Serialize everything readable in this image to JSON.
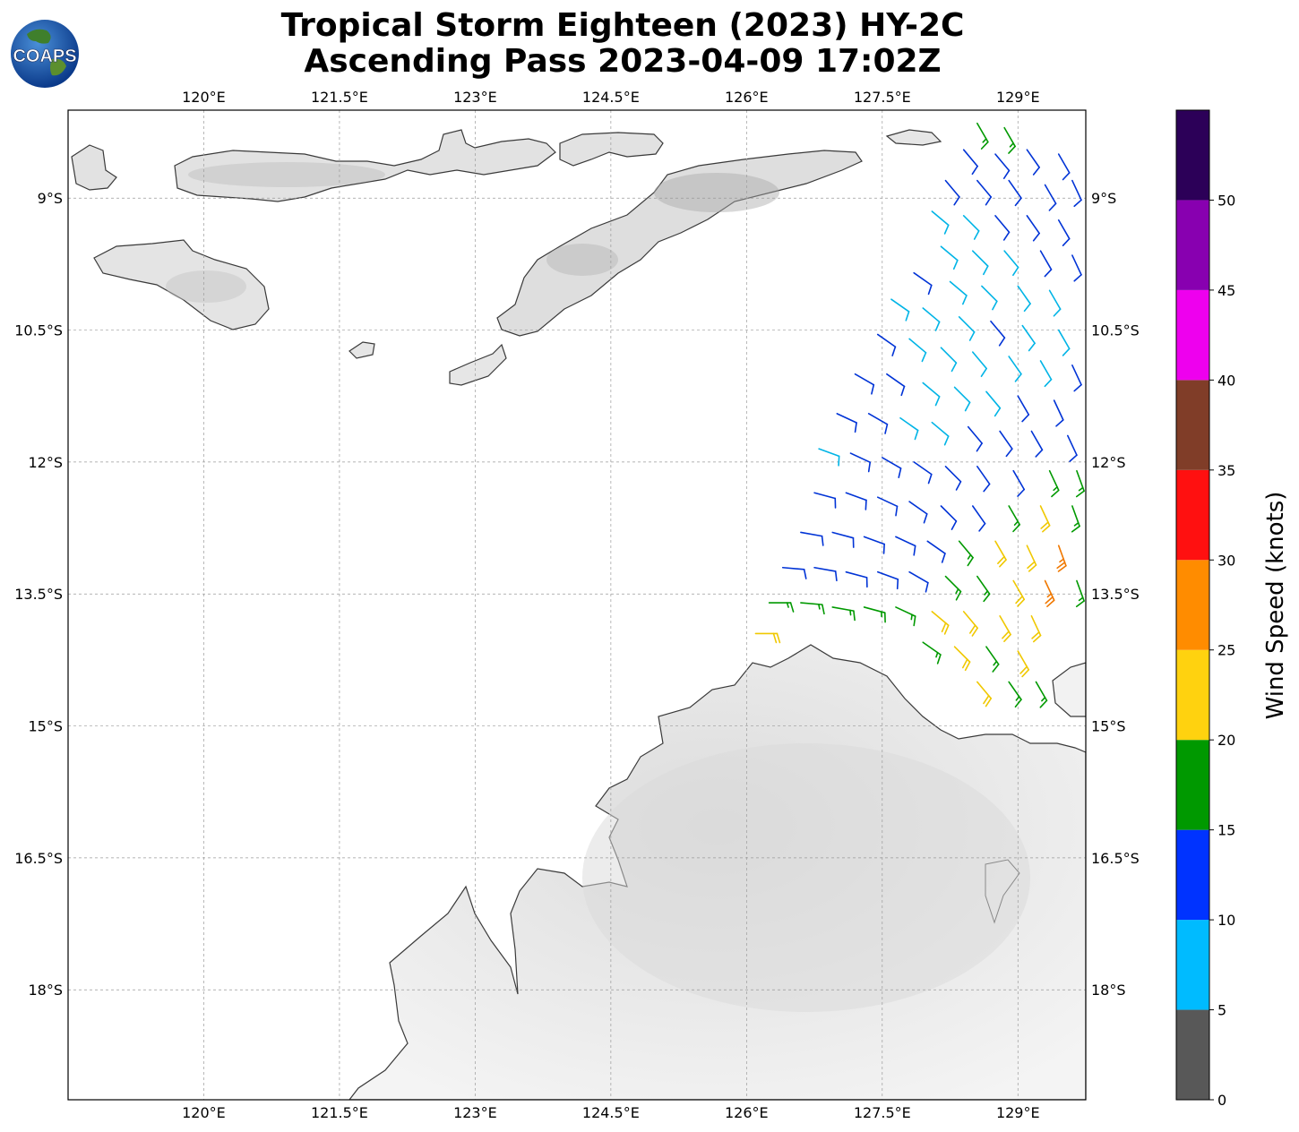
{
  "title": {
    "line1": "Tropical Storm Eighteen (2023) HY-2C",
    "line2": "Ascending Pass 2023-04-09 17:02Z"
  },
  "logo": {
    "text": "COAPS",
    "icon": "globe-logo-icon"
  },
  "map": {
    "lon_range": [
      118.5,
      129.75
    ],
    "lat_range": [
      -19.25,
      -8.0
    ],
    "lon_ticks": [
      {
        "value": 120.0,
        "label": "120°E"
      },
      {
        "value": 121.5,
        "label": "121.5°E"
      },
      {
        "value": 123.0,
        "label": "123°E"
      },
      {
        "value": 124.5,
        "label": "124.5°E"
      },
      {
        "value": 126.0,
        "label": "126°E"
      },
      {
        "value": 127.5,
        "label": "127.5°E"
      },
      {
        "value": 129.0,
        "label": "129°E"
      }
    ],
    "lat_ticks": [
      {
        "value": -9.0,
        "label": "9°S"
      },
      {
        "value": -10.5,
        "label": "10.5°S"
      },
      {
        "value": -12.0,
        "label": "12°S"
      },
      {
        "value": -13.5,
        "label": "13.5°S"
      },
      {
        "value": -15.0,
        "label": "15°S"
      },
      {
        "value": -16.5,
        "label": "16.5°S"
      },
      {
        "value": -18.0,
        "label": "18°S"
      }
    ],
    "grid": true,
    "regions": [
      "Flores",
      "Sumba",
      "Timor",
      "Wetar",
      "Sawu",
      "Rote",
      "Western Australia (Kimberley)",
      "Northern Territory"
    ]
  },
  "colorbar": {
    "label": "Wind Speed (knots)",
    "range": [
      0,
      55
    ],
    "ticks": [
      0,
      5,
      10,
      15,
      20,
      25,
      30,
      35,
      40,
      45,
      50
    ],
    "colors": [
      {
        "from": 0,
        "to": 5,
        "color": "#585858"
      },
      {
        "from": 5,
        "to": 10,
        "color": "#00bbff"
      },
      {
        "from": 10,
        "to": 15,
        "color": "#0033ff"
      },
      {
        "from": 15,
        "to": 20,
        "color": "#009900"
      },
      {
        "from": 20,
        "to": 25,
        "color": "#ffd20f"
      },
      {
        "from": 25,
        "to": 30,
        "color": "#ff8c00"
      },
      {
        "from": 30,
        "to": 35,
        "color": "#ff1010"
      },
      {
        "from": 35,
        "to": 40,
        "color": "#803d28"
      },
      {
        "from": 40,
        "to": 45,
        "color": "#ee00ee"
      },
      {
        "from": 45,
        "to": 50,
        "color": "#8800b0"
      },
      {
        "from": 50,
        "to": 55,
        "color": "#2c0058"
      }
    ]
  },
  "wind_field": {
    "colors": {
      "cyan": "#00b4e6",
      "blue": "#0033d6",
      "green": "#009900",
      "yellow": "#f0c800",
      "orange": "#f07800"
    },
    "samples_note_free": true,
    "barbs": [
      {
        "lon": 128.55,
        "lat": -8.15,
        "speed": 17,
        "dir": 150
      },
      {
        "lon": 128.85,
        "lat": -8.2,
        "speed": 17,
        "dir": 150
      },
      {
        "lon": 128.4,
        "lat": -8.45,
        "speed": 12,
        "dir": 140
      },
      {
        "lon": 128.75,
        "lat": -8.5,
        "speed": 12,
        "dir": 140
      },
      {
        "lon": 129.1,
        "lat": -8.45,
        "speed": 12,
        "dir": 145
      },
      {
        "lon": 129.45,
        "lat": -8.5,
        "speed": 12,
        "dir": 150
      },
      {
        "lon": 128.2,
        "lat": -8.8,
        "speed": 12,
        "dir": 140
      },
      {
        "lon": 128.55,
        "lat": -8.8,
        "speed": 12,
        "dir": 140
      },
      {
        "lon": 128.9,
        "lat": -8.8,
        "speed": 12,
        "dir": 145
      },
      {
        "lon": 129.3,
        "lat": -8.85,
        "speed": 12,
        "dir": 150
      },
      {
        "lon": 129.6,
        "lat": -8.8,
        "speed": 12,
        "dir": 155
      },
      {
        "lon": 128.05,
        "lat": -9.15,
        "speed": 8,
        "dir": 130
      },
      {
        "lon": 128.4,
        "lat": -9.2,
        "speed": 8,
        "dir": 135
      },
      {
        "lon": 128.75,
        "lat": -9.2,
        "speed": 12,
        "dir": 140
      },
      {
        "lon": 129.1,
        "lat": -9.2,
        "speed": 12,
        "dir": 145
      },
      {
        "lon": 129.45,
        "lat": -9.25,
        "speed": 12,
        "dir": 150
      },
      {
        "lon": 128.15,
        "lat": -9.55,
        "speed": 8,
        "dir": 130
      },
      {
        "lon": 128.5,
        "lat": -9.6,
        "speed": 8,
        "dir": 135
      },
      {
        "lon": 128.85,
        "lat": -9.6,
        "speed": 8,
        "dir": 140
      },
      {
        "lon": 129.25,
        "lat": -9.6,
        "speed": 12,
        "dir": 150
      },
      {
        "lon": 129.6,
        "lat": -9.65,
        "speed": 12,
        "dir": 155
      },
      {
        "lon": 127.85,
        "lat": -9.85,
        "speed": 12,
        "dir": 125
      },
      {
        "lon": 128.25,
        "lat": -9.95,
        "speed": 8,
        "dir": 130
      },
      {
        "lon": 128.6,
        "lat": -10.0,
        "speed": 8,
        "dir": 135
      },
      {
        "lon": 129.0,
        "lat": -10.0,
        "speed": 8,
        "dir": 145
      },
      {
        "lon": 129.35,
        "lat": -10.05,
        "speed": 8,
        "dir": 150
      },
      {
        "lon": 127.6,
        "lat": -10.15,
        "speed": 8,
        "dir": 125
      },
      {
        "lon": 127.95,
        "lat": -10.25,
        "speed": 8,
        "dir": 130
      },
      {
        "lon": 128.35,
        "lat": -10.35,
        "speed": 8,
        "dir": 135
      },
      {
        "lon": 128.7,
        "lat": -10.4,
        "speed": 12,
        "dir": 140
      },
      {
        "lon": 129.05,
        "lat": -10.45,
        "speed": 8,
        "dir": 145
      },
      {
        "lon": 129.45,
        "lat": -10.5,
        "speed": 8,
        "dir": 150
      },
      {
        "lon": 127.45,
        "lat": -10.55,
        "speed": 12,
        "dir": 125
      },
      {
        "lon": 127.8,
        "lat": -10.6,
        "speed": 8,
        "dir": 130
      },
      {
        "lon": 128.15,
        "lat": -10.7,
        "speed": 8,
        "dir": 135
      },
      {
        "lon": 128.5,
        "lat": -10.75,
        "speed": 8,
        "dir": 140
      },
      {
        "lon": 128.9,
        "lat": -10.8,
        "speed": 8,
        "dir": 145
      },
      {
        "lon": 129.25,
        "lat": -10.85,
        "speed": 8,
        "dir": 150
      },
      {
        "lon": 129.6,
        "lat": -10.9,
        "speed": 12,
        "dir": 155
      },
      {
        "lon": 127.2,
        "lat": -11.0,
        "speed": 12,
        "dir": 120
      },
      {
        "lon": 127.55,
        "lat": -11.0,
        "speed": 12,
        "dir": 125
      },
      {
        "lon": 127.95,
        "lat": -11.1,
        "speed": 8,
        "dir": 130
      },
      {
        "lon": 128.3,
        "lat": -11.15,
        "speed": 8,
        "dir": 135
      },
      {
        "lon": 128.65,
        "lat": -11.2,
        "speed": 8,
        "dir": 140
      },
      {
        "lon": 129.0,
        "lat": -11.25,
        "speed": 12,
        "dir": 150
      },
      {
        "lon": 129.4,
        "lat": -11.3,
        "speed": 12,
        "dir": 155
      },
      {
        "lon": 127.0,
        "lat": -11.45,
        "speed": 12,
        "dir": 115
      },
      {
        "lon": 127.35,
        "lat": -11.45,
        "speed": 12,
        "dir": 120
      },
      {
        "lon": 127.7,
        "lat": -11.5,
        "speed": 8,
        "dir": 125
      },
      {
        "lon": 128.05,
        "lat": -11.55,
        "speed": 8,
        "dir": 130
      },
      {
        "lon": 128.45,
        "lat": -11.6,
        "speed": 12,
        "dir": 140
      },
      {
        "lon": 128.8,
        "lat": -11.65,
        "speed": 12,
        "dir": 145
      },
      {
        "lon": 129.15,
        "lat": -11.65,
        "speed": 12,
        "dir": 150
      },
      {
        "lon": 129.55,
        "lat": -11.7,
        "speed": 12,
        "dir": 155
      },
      {
        "lon": 126.8,
        "lat": -11.85,
        "speed": 8,
        "dir": 110
      },
      {
        "lon": 127.15,
        "lat": -11.9,
        "speed": 12,
        "dir": 115
      },
      {
        "lon": 127.5,
        "lat": -11.95,
        "speed": 12,
        "dir": 120
      },
      {
        "lon": 127.85,
        "lat": -12.0,
        "speed": 12,
        "dir": 125
      },
      {
        "lon": 128.2,
        "lat": -12.05,
        "speed": 12,
        "dir": 135
      },
      {
        "lon": 128.55,
        "lat": -12.05,
        "speed": 12,
        "dir": 145
      },
      {
        "lon": 128.95,
        "lat": -12.1,
        "speed": 12,
        "dir": 150
      },
      {
        "lon": 129.35,
        "lat": -12.1,
        "speed": 17,
        "dir": 155
      },
      {
        "lon": 129.65,
        "lat": -12.1,
        "speed": 17,
        "dir": 160
      },
      {
        "lon": 126.75,
        "lat": -12.35,
        "speed": 12,
        "dir": 105
      },
      {
        "lon": 127.1,
        "lat": -12.35,
        "speed": 12,
        "dir": 110
      },
      {
        "lon": 127.45,
        "lat": -12.4,
        "speed": 12,
        "dir": 115
      },
      {
        "lon": 127.8,
        "lat": -12.45,
        "speed": 12,
        "dir": 125
      },
      {
        "lon": 128.15,
        "lat": -12.5,
        "speed": 12,
        "dir": 135
      },
      {
        "lon": 128.5,
        "lat": -12.5,
        "speed": 12,
        "dir": 145
      },
      {
        "lon": 128.9,
        "lat": -12.5,
        "speed": 17,
        "dir": 150
      },
      {
        "lon": 129.25,
        "lat": -12.5,
        "speed": 22,
        "dir": 155
      },
      {
        "lon": 129.6,
        "lat": -12.5,
        "speed": 17,
        "dir": 160
      },
      {
        "lon": 126.6,
        "lat": -12.8,
        "speed": 12,
        "dir": 100
      },
      {
        "lon": 126.95,
        "lat": -12.8,
        "speed": 12,
        "dir": 105
      },
      {
        "lon": 127.3,
        "lat": -12.85,
        "speed": 12,
        "dir": 110
      },
      {
        "lon": 127.65,
        "lat": -12.85,
        "speed": 12,
        "dir": 115
      },
      {
        "lon": 128.0,
        "lat": -12.9,
        "speed": 12,
        "dir": 125
      },
      {
        "lon": 128.35,
        "lat": -12.9,
        "speed": 17,
        "dir": 140
      },
      {
        "lon": 128.75,
        "lat": -12.9,
        "speed": 22,
        "dir": 150
      },
      {
        "lon": 129.1,
        "lat": -12.95,
        "speed": 22,
        "dir": 155
      },
      {
        "lon": 129.45,
        "lat": -12.95,
        "speed": 27,
        "dir": 160
      },
      {
        "lon": 126.4,
        "lat": -13.2,
        "speed": 12,
        "dir": 95
      },
      {
        "lon": 126.75,
        "lat": -13.2,
        "speed": 12,
        "dir": 100
      },
      {
        "lon": 127.1,
        "lat": -13.25,
        "speed": 12,
        "dir": 105
      },
      {
        "lon": 127.45,
        "lat": -13.25,
        "speed": 12,
        "dir": 110
      },
      {
        "lon": 127.8,
        "lat": -13.25,
        "speed": 12,
        "dir": 120
      },
      {
        "lon": 128.2,
        "lat": -13.3,
        "speed": 17,
        "dir": 135
      },
      {
        "lon": 128.55,
        "lat": -13.3,
        "speed": 17,
        "dir": 145
      },
      {
        "lon": 128.95,
        "lat": -13.35,
        "speed": 22,
        "dir": 150
      },
      {
        "lon": 129.3,
        "lat": -13.35,
        "speed": 27,
        "dir": 155
      },
      {
        "lon": 129.65,
        "lat": -13.35,
        "speed": 17,
        "dir": 160
      },
      {
        "lon": 126.25,
        "lat": -13.6,
        "speed": 17,
        "dir": 90
      },
      {
        "lon": 126.6,
        "lat": -13.6,
        "speed": 17,
        "dir": 95
      },
      {
        "lon": 126.95,
        "lat": -13.65,
        "speed": 17,
        "dir": 100
      },
      {
        "lon": 127.3,
        "lat": -13.65,
        "speed": 17,
        "dir": 105
      },
      {
        "lon": 127.65,
        "lat": -13.65,
        "speed": 17,
        "dir": 115
      },
      {
        "lon": 128.05,
        "lat": -13.7,
        "speed": 22,
        "dir": 130
      },
      {
        "lon": 128.4,
        "lat": -13.7,
        "speed": 22,
        "dir": 140
      },
      {
        "lon": 128.8,
        "lat": -13.75,
        "speed": 22,
        "dir": 150
      },
      {
        "lon": 129.15,
        "lat": -13.75,
        "speed": 22,
        "dir": 155
      },
      {
        "lon": 126.1,
        "lat": -13.95,
        "speed": 22,
        "dir": 90
      },
      {
        "lon": 127.95,
        "lat": -14.05,
        "speed": 17,
        "dir": 125
      },
      {
        "lon": 128.3,
        "lat": -14.1,
        "speed": 22,
        "dir": 135
      },
      {
        "lon": 128.65,
        "lat": -14.1,
        "speed": 17,
        "dir": 145
      },
      {
        "lon": 129.0,
        "lat": -14.15,
        "speed": 22,
        "dir": 150
      },
      {
        "lon": 128.55,
        "lat": -14.5,
        "speed": 22,
        "dir": 140
      },
      {
        "lon": 128.9,
        "lat": -14.5,
        "speed": 17,
        "dir": 145
      },
      {
        "lon": 129.2,
        "lat": -14.5,
        "speed": 17,
        "dir": 150
      }
    ]
  }
}
